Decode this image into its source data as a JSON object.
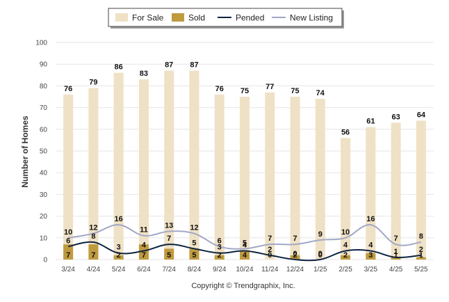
{
  "chart_data": {
    "type": "bar",
    "categories": [
      "3/24",
      "4/24",
      "5/24",
      "6/24",
      "7/24",
      "8/24",
      "9/24",
      "10/24",
      "11/24",
      "12/24",
      "1/25",
      "2/25",
      "3/25",
      "4/25",
      "5/25"
    ],
    "ylabel": "Number of Homes",
    "ylim": [
      0,
      100
    ],
    "yticks": [
      0,
      10,
      20,
      30,
      40,
      50,
      60,
      70,
      80,
      90,
      100
    ],
    "grid": true,
    "legend_position": "top-center",
    "series": [
      {
        "name": "For Sale",
        "type": "bar",
        "color": "#efe1c5",
        "values": [
          76,
          79,
          86,
          83,
          87,
          87,
          76,
          75,
          77,
          75,
          74,
          56,
          61,
          63,
          64
        ]
      },
      {
        "name": "Sold",
        "type": "bar",
        "color": "#c09a3e",
        "values": [
          7,
          7,
          2,
          7,
          5,
          5,
          2,
          4,
          0,
          2,
          0,
          2,
          3,
          1,
          1
        ]
      },
      {
        "name": "Pended",
        "type": "line",
        "color": "#0d2340",
        "values": [
          6,
          8,
          3,
          4,
          7,
          5,
          3,
          4,
          2,
          0,
          0,
          4,
          4,
          1,
          2
        ]
      },
      {
        "name": "New Listing",
        "type": "line",
        "color": "#a2a8c6",
        "values": [
          10,
          12,
          16,
          11,
          13,
          12,
          6,
          5,
          7,
          7,
          9,
          10,
          16,
          7,
          8
        ]
      }
    ]
  },
  "copyright": "Copyright © Trendgraphix, Inc."
}
